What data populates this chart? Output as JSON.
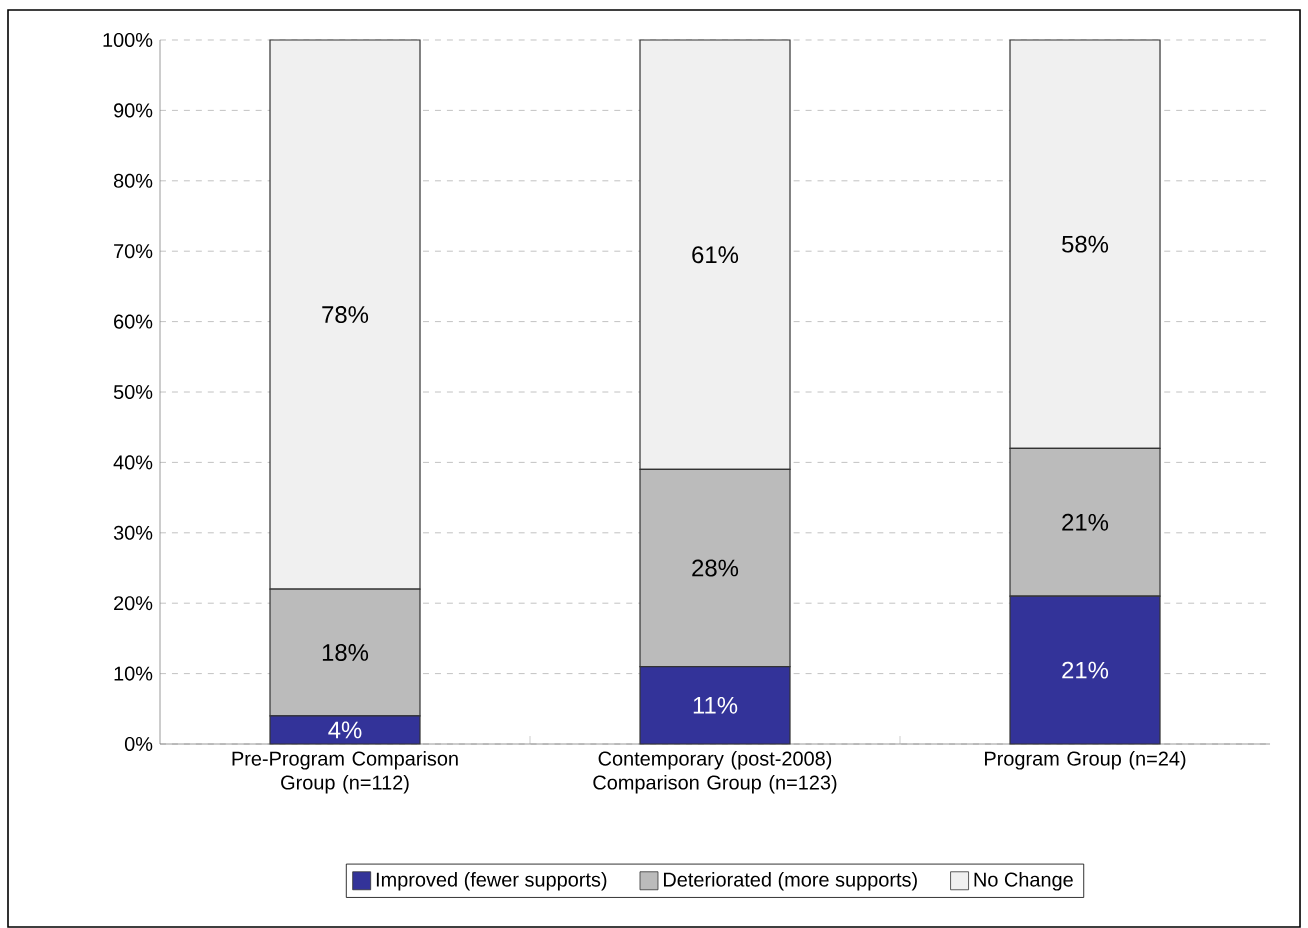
{
  "chart_data": {
    "type": "bar",
    "stacked": true,
    "categories": [
      "Pre-Program Comparison Group (n=112)",
      "Contemporary (post-2008) Comparison Group (n=123)",
      "Program Group (n=24)"
    ],
    "series": [
      {
        "name": "Improved (fewer supports)",
        "color": "#333399",
        "values": [
          4,
          11,
          21
        ],
        "value_labels": [
          "4%",
          "11%",
          "21%"
        ]
      },
      {
        "name": "Deteriorated (more supports)",
        "color": "#bbbbbb",
        "values": [
          18,
          28,
          21
        ],
        "value_labels": [
          "18%",
          "28%",
          "21%"
        ]
      },
      {
        "name": "No Change",
        "color": "#f0f0f0",
        "values": [
          78,
          61,
          58
        ],
        "value_labels": [
          "78%",
          "61%",
          "58%"
        ]
      }
    ],
    "ylim": [
      0,
      100
    ],
    "yticks": [
      {
        "value": 0,
        "label": "0%"
      },
      {
        "value": 10,
        "label": "10%"
      },
      {
        "value": 20,
        "label": "20%"
      },
      {
        "value": 30,
        "label": "30%"
      },
      {
        "value": 40,
        "label": "40%"
      },
      {
        "value": 50,
        "label": "50%"
      },
      {
        "value": 60,
        "label": "60%"
      },
      {
        "value": 70,
        "label": "70%"
      },
      {
        "value": 80,
        "label": "80%"
      },
      {
        "value": 90,
        "label": "90%"
      },
      {
        "value": 100,
        "label": "100%"
      }
    ],
    "grid": "y",
    "legend": "bottom"
  }
}
